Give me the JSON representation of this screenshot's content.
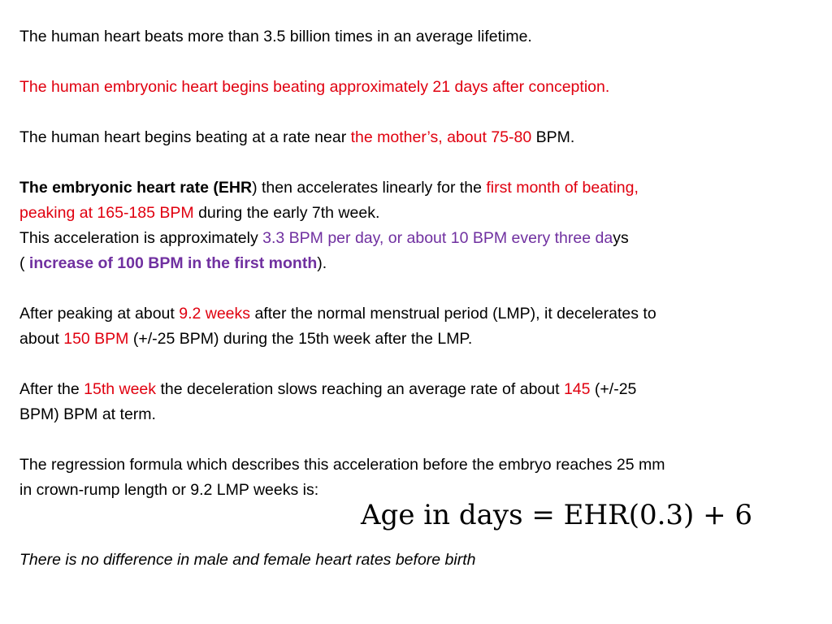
{
  "p1": "The human heart beats more than 3.5 billion times in an average lifetime.",
  "p2": "The human embryonic heart begins beating approximately 21 days after conception.",
  "p3": {
    "a": "The human heart begins beating at a rate near ",
    "b": "the mother’s, about 75-80",
    "c": " BPM."
  },
  "p4": {
    "a": "The embryonic heart rate (EHR",
    "b": ") then accelerates linearly for the ",
    "c": "first month of beating,",
    "d": "peaking at 165-185 BPM",
    "e": " during the early 7th week."
  },
  "p5": {
    "a": "This acceleration is approximately ",
    "b": "3.3 BPM per day, or about 10 BPM every three da",
    "c": "ys",
    "d": "( ",
    "e": "increase of 100 BPM in the first month",
    "f": ")."
  },
  "p6": {
    "a": "After peaking at about ",
    "b": "9.2 weeks",
    "c": " after the normal menstrual period (LMP), it decelerates to",
    "d": "about ",
    "e": "150 BPM",
    "f": " (+/-25 BPM) during the 15th week after the LMP."
  },
  "p7": {
    "a": "After the ",
    "b": "15th week",
    "c": " the deceleration slows reaching an average rate of about ",
    "d": "145",
    "e": " (+/-25",
    "f": "BPM) BPM at term."
  },
  "p8": {
    "a": "The regression formula which describes this acceleration before the embryo reaches 25 mm",
    "b": "in crown-rump length or 9.2 LMP weeks is:"
  },
  "formula": "Age in days =  EHR(0.3) + 6",
  "closing": "There is no difference in male and female heart rates before birth",
  "colors": {
    "highlight_red": "#e0000f",
    "highlight_purple": "#7030a0",
    "text": "#000000"
  }
}
